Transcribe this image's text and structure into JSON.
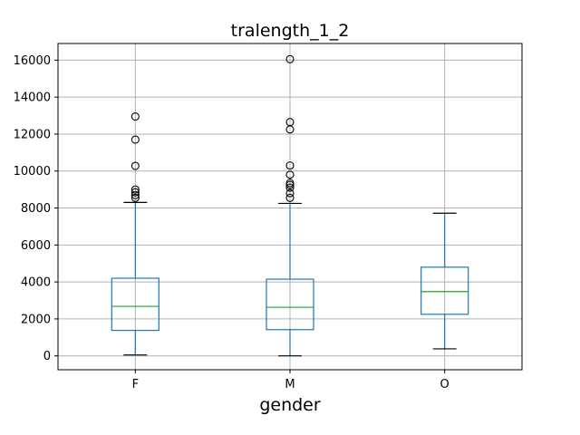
{
  "chart_data": {
    "type": "box",
    "title": "tralength_1_2",
    "xlabel": "gender",
    "ylabel": "",
    "categories": [
      "F",
      "M",
      "O"
    ],
    "ylim": [
      -750,
      16900
    ],
    "yticks": [
      0,
      2000,
      4000,
      6000,
      8000,
      10000,
      12000,
      14000,
      16000
    ],
    "ytick_labels": [
      "0",
      "2000",
      "4000",
      "6000",
      "8000",
      "10000",
      "12000",
      "14000",
      "16000"
    ],
    "grid": true,
    "boxes": [
      {
        "category": "F",
        "whisker_low": 50,
        "q1": 1380,
        "median": 2680,
        "q3": 4200,
        "whisker_high": 8300,
        "outliers": [
          8550,
          8700,
          8850,
          9000,
          10280,
          11700,
          12950
        ]
      },
      {
        "category": "M",
        "whisker_low": 0,
        "q1": 1420,
        "median": 2630,
        "q3": 4150,
        "whisker_high": 8250,
        "outliers": [
          8550,
          8800,
          9100,
          9250,
          9350,
          9800,
          10300,
          12250,
          12650,
          16050
        ]
      },
      {
        "category": "O",
        "whisker_low": 380,
        "q1": 2250,
        "median": 3480,
        "q3": 4800,
        "whisker_high": 7720,
        "outliers": []
      }
    ],
    "colors": {
      "box": "#1f77b4",
      "median": "#2ca02c",
      "whisker": "#1f77b4",
      "cap": "#000000",
      "grid": "#b0b0b0",
      "outlier": "#000000"
    }
  }
}
